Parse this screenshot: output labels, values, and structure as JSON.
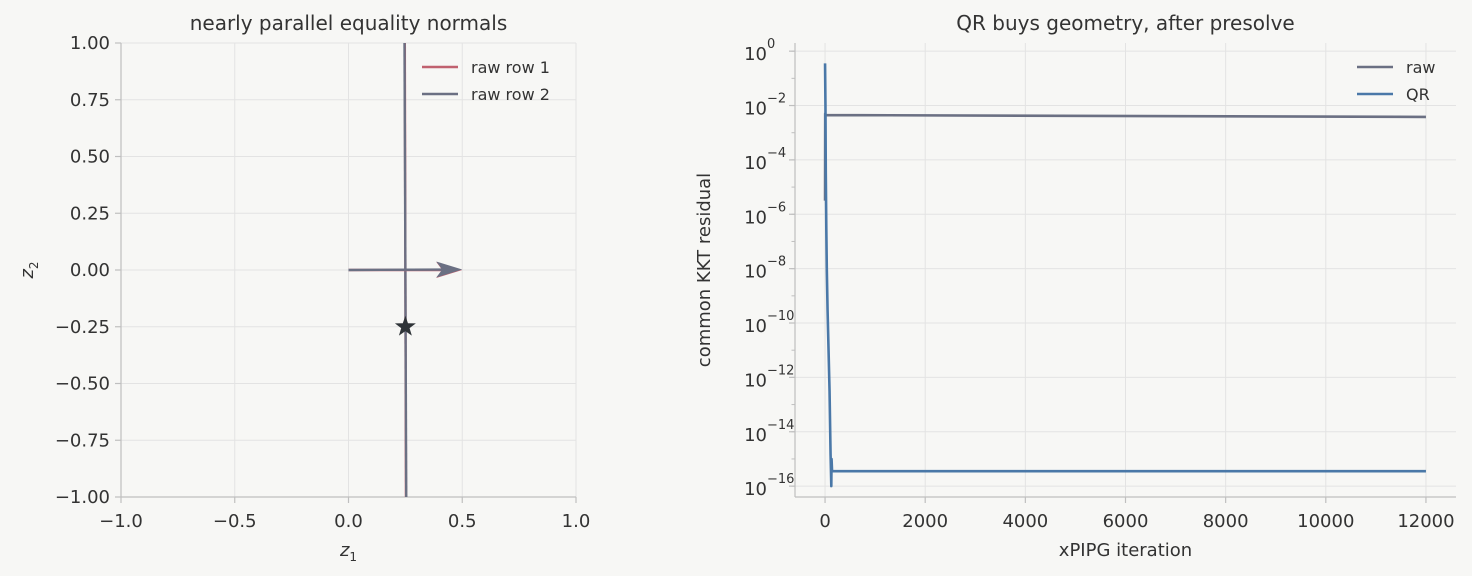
{
  "chart_data": [
    {
      "type": "line",
      "title": "nearly parallel equality normals",
      "xlabel": "z",
      "xlabel_sub": "1",
      "ylabel": "z",
      "ylabel_sub": "2",
      "xlim": [
        -1.0,
        1.0
      ],
      "ylim": [
        -1.0,
        1.0
      ],
      "xticks": [
        -1.0,
        -0.5,
        0.0,
        0.5,
        1.0
      ],
      "xtick_labels": [
        "−1.0",
        "−0.5",
        "0.0",
        "0.5",
        "1.0"
      ],
      "yticks": [
        1.0,
        0.75,
        0.5,
        0.25,
        0.0,
        -0.25,
        -0.5,
        -0.75,
        -1.0
      ],
      "ytick_labels": [
        "1.00",
        "0.75",
        "0.50",
        "0.25",
        "0.00",
        "−0.25",
        "−0.50",
        "−0.75",
        "−1.00"
      ],
      "grid": true,
      "legend_position": "top-right",
      "series": [
        {
          "name": "raw row 1",
          "color": "#c0616f",
          "points": [
            [
              0.2475,
              1.0
            ],
            [
              0.2525,
              -1.0
            ]
          ]
        },
        {
          "name": "raw row 2",
          "color": "#6b7083",
          "points": [
            [
              0.2462,
              1.0
            ],
            [
              0.2538,
              -1.0
            ]
          ]
        }
      ],
      "arrows": [
        {
          "from": [
            0.0,
            0.0
          ],
          "to": [
            0.5,
            0.0
          ],
          "color": "#c0616f"
        },
        {
          "from": [
            0.0,
            0.0
          ],
          "to": [
            0.5,
            0.002
          ],
          "color": "#6b7083"
        }
      ],
      "marker": {
        "symbol": "star",
        "point": [
          0.25,
          -0.25
        ],
        "color": "#2f3438"
      }
    },
    {
      "type": "line",
      "title": "QR buys geometry, after presolve",
      "xlabel": "xPIPG iteration",
      "ylabel": "common KKT residual",
      "log_y": true,
      "xlim": [
        -600,
        12600
      ],
      "ylim_exp": [
        -16.4,
        0.3
      ],
      "xticks": [
        0,
        2000,
        4000,
        6000,
        8000,
        10000,
        12000
      ],
      "xtick_labels": [
        "0",
        "2000",
        "4000",
        "6000",
        "8000",
        "10000",
        "12000"
      ],
      "ytick_exponents": [
        0,
        -2,
        -4,
        -6,
        -8,
        -10,
        -12,
        -14,
        -16
      ],
      "ytick_base": "10",
      "ytick_sup": [
        "0",
        "−2",
        "−4",
        "−6",
        "−8",
        "−10",
        "−12",
        "−14",
        "−16"
      ],
      "grid": true,
      "legend_position": "top-right",
      "series": [
        {
          "name": "raw",
          "color": "#6b7083",
          "x": [
            0,
            3,
            6,
            12000
          ],
          "y_exp": [
            -5.5,
            -2.3,
            -2.35,
            -2.42
          ]
        },
        {
          "name": "QR",
          "color": "#4a78a8",
          "x": [
            0,
            8,
            15,
            25,
            35,
            50,
            70,
            90,
            110,
            125,
            130,
            140,
            12000
          ],
          "y_exp": [
            -0.45,
            -2.0,
            -4.5,
            -6.5,
            -8.0,
            -9.5,
            -11.0,
            -12.5,
            -14.8,
            -16.0,
            -15.0,
            -15.45,
            -15.45
          ]
        }
      ]
    }
  ]
}
